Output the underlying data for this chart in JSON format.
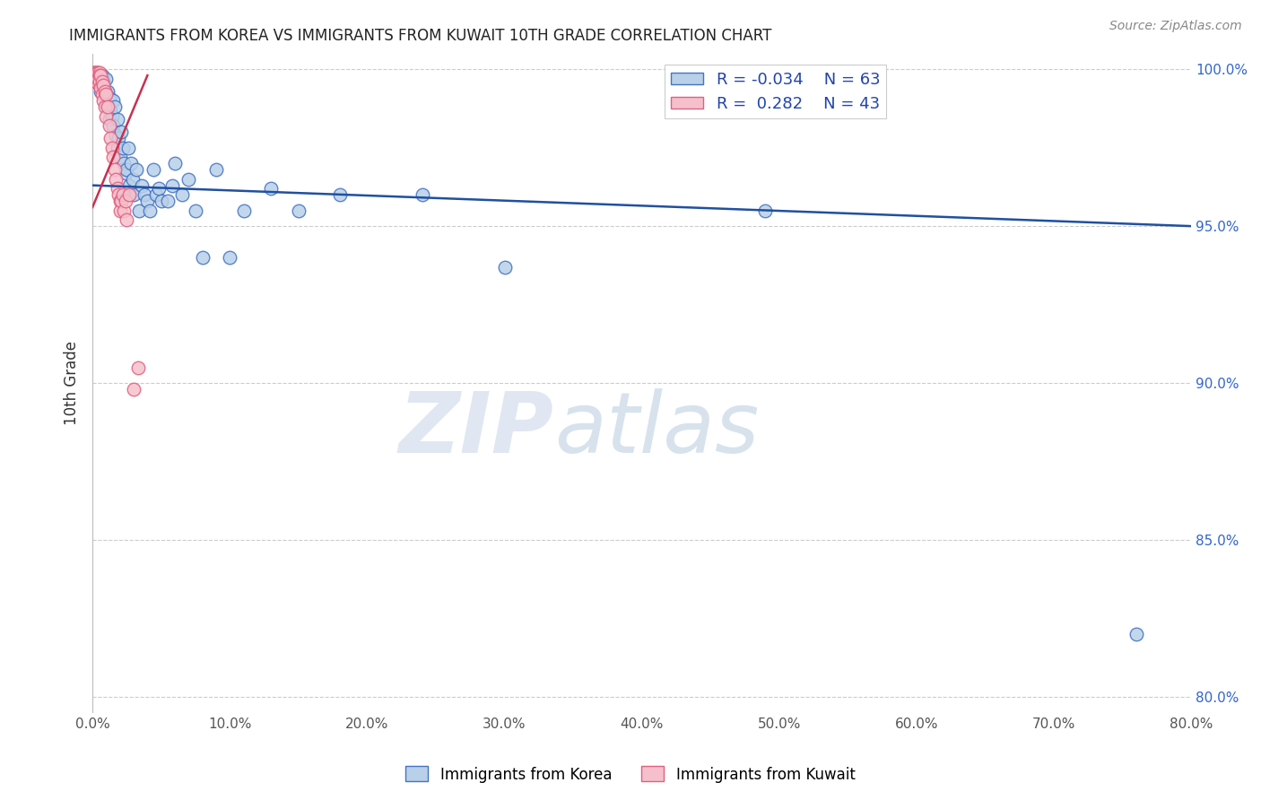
{
  "title": "IMMIGRANTS FROM KOREA VS IMMIGRANTS FROM KUWAIT 10TH GRADE CORRELATION CHART",
  "source": "Source: ZipAtlas.com",
  "ylabel": "10th Grade",
  "legend_korea": "Immigrants from Korea",
  "legend_kuwait": "Immigrants from Kuwait",
  "korea_R": "-0.034",
  "korea_N": "63",
  "kuwait_R": "0.282",
  "kuwait_N": "43",
  "xlim": [
    0.0,
    0.8
  ],
  "ylim": [
    0.795,
    1.005
  ],
  "xticks": [
    0.0,
    0.1,
    0.2,
    0.3,
    0.4,
    0.5,
    0.6,
    0.7,
    0.8
  ],
  "yticks_right": [
    0.8,
    0.85,
    0.9,
    0.95,
    1.0
  ],
  "ytick_labels_right": [
    "80.0%",
    "85.0%",
    "90.0%",
    "95.0%",
    "100.0%"
  ],
  "xtick_labels": [
    "0.0%",
    "10.0%",
    "20.0%",
    "30.0%",
    "40.0%",
    "50.0%",
    "60.0%",
    "70.0%",
    "80.0%"
  ],
  "color_korea": "#b8d0e8",
  "color_kuwait": "#f5c0cc",
  "color_korea_edge": "#4472c4",
  "color_kuwait_edge": "#e06080",
  "color_korea_line": "#2050a0",
  "color_kuwait_line": "#c83050",
  "watermark_zip": "ZIP",
  "watermark_atlas": "atlas",
  "background_color": "#ffffff",
  "korea_trend_x0": 0.0,
  "korea_trend_y0": 0.963,
  "korea_trend_x1": 0.8,
  "korea_trend_y1": 0.95,
  "kuwait_trend_x0": 0.0,
  "kuwait_trend_y0": 0.956,
  "kuwait_trend_x1": 0.04,
  "kuwait_trend_y1": 0.998,
  "korea_x": [
    0.001,
    0.002,
    0.003,
    0.004,
    0.005,
    0.005,
    0.006,
    0.006,
    0.007,
    0.008,
    0.009,
    0.01,
    0.01,
    0.011,
    0.012,
    0.012,
    0.013,
    0.014,
    0.015,
    0.015,
    0.016,
    0.017,
    0.018,
    0.018,
    0.019,
    0.02,
    0.021,
    0.022,
    0.023,
    0.024,
    0.025,
    0.026,
    0.027,
    0.028,
    0.029,
    0.03,
    0.032,
    0.034,
    0.036,
    0.038,
    0.04,
    0.042,
    0.044,
    0.046,
    0.048,
    0.05,
    0.055,
    0.058,
    0.06,
    0.065,
    0.07,
    0.075,
    0.08,
    0.09,
    0.1,
    0.11,
    0.13,
    0.15,
    0.18,
    0.24,
    0.3,
    0.49,
    0.76
  ],
  "korea_y": [
    0.999,
    0.998,
    0.998,
    0.999,
    0.998,
    0.995,
    0.998,
    0.993,
    0.998,
    0.996,
    0.993,
    0.997,
    0.989,
    0.993,
    0.991,
    0.984,
    0.987,
    0.985,
    0.99,
    0.982,
    0.988,
    0.979,
    0.984,
    0.975,
    0.978,
    0.972,
    0.98,
    0.975,
    0.97,
    0.967,
    0.968,
    0.975,
    0.963,
    0.97,
    0.965,
    0.96,
    0.968,
    0.955,
    0.963,
    0.96,
    0.958,
    0.955,
    0.968,
    0.96,
    0.962,
    0.958,
    0.958,
    0.963,
    0.97,
    0.96,
    0.965,
    0.955,
    0.94,
    0.968,
    0.94,
    0.955,
    0.962,
    0.955,
    0.96,
    0.96,
    0.937,
    0.955,
    0.82
  ],
  "kuwait_x": [
    0.001,
    0.001,
    0.001,
    0.002,
    0.002,
    0.002,
    0.003,
    0.003,
    0.003,
    0.004,
    0.004,
    0.005,
    0.005,
    0.005,
    0.006,
    0.006,
    0.007,
    0.007,
    0.008,
    0.008,
    0.009,
    0.009,
    0.01,
    0.01,
    0.011,
    0.012,
    0.013,
    0.014,
    0.015,
    0.016,
    0.017,
    0.018,
    0.019,
    0.02,
    0.02,
    0.021,
    0.022,
    0.023,
    0.024,
    0.025,
    0.027,
    0.03,
    0.033
  ],
  "kuwait_y": [
    0.999,
    0.998,
    0.997,
    0.999,
    0.998,
    0.996,
    0.999,
    0.998,
    0.996,
    0.999,
    0.997,
    0.999,
    0.998,
    0.996,
    0.998,
    0.994,
    0.996,
    0.992,
    0.995,
    0.99,
    0.993,
    0.988,
    0.992,
    0.985,
    0.988,
    0.982,
    0.978,
    0.975,
    0.972,
    0.968,
    0.965,
    0.962,
    0.96,
    0.958,
    0.955,
    0.958,
    0.96,
    0.955,
    0.958,
    0.952,
    0.96,
    0.898,
    0.905
  ]
}
